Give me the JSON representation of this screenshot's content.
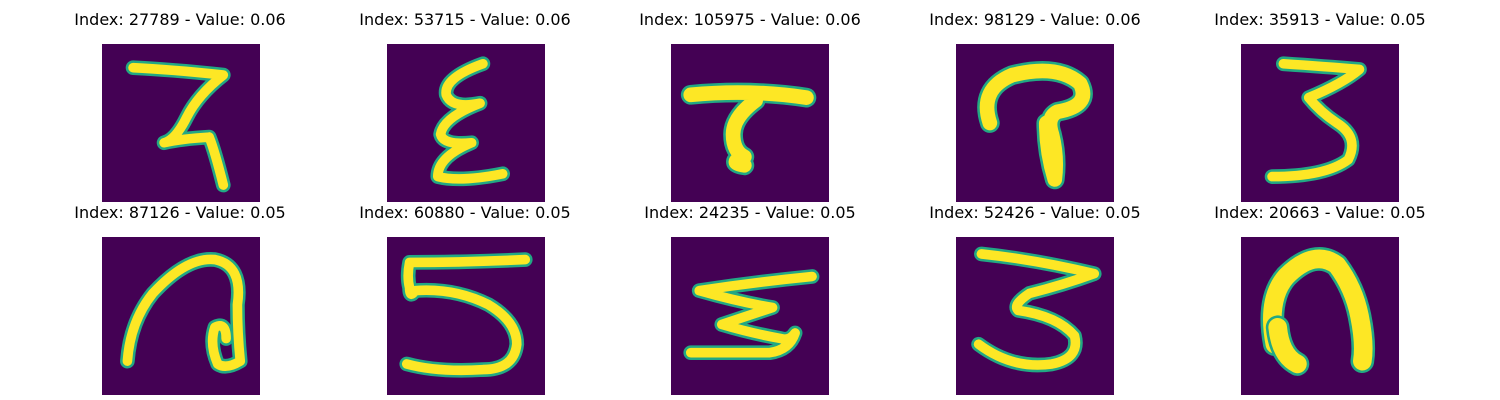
{
  "figure": {
    "colormap": "viridis",
    "background_color": "#440154",
    "stroke_color": "#fde725",
    "edge_color": "#22a884",
    "panels": [
      {
        "title": "Index: 27789 - Value: 0.06",
        "index": 27789,
        "value": 0.06,
        "icon": "handwritten-digit-7"
      },
      {
        "title": "Index: 53715 - Value: 0.06",
        "index": 53715,
        "value": 0.06,
        "icon": "handwritten-digit-3-squiggle"
      },
      {
        "title": "Index: 105975 - Value: 0.06",
        "index": 105975,
        "value": 0.06,
        "icon": "handwritten-digit-7-bar"
      },
      {
        "title": "Index: 98129 - Value: 0.06",
        "index": 98129,
        "value": 0.06,
        "icon": "handwritten-curl-shape"
      },
      {
        "title": "Index: 35913 - Value: 0.05",
        "index": 35913,
        "value": 0.05,
        "icon": "handwritten-digit-3"
      },
      {
        "title": "Index: 87126 - Value: 0.05",
        "index": 87126,
        "value": 0.05,
        "icon": "handwritten-digit-a"
      },
      {
        "title": "Index: 60880 - Value: 0.05",
        "index": 60880,
        "value": 0.05,
        "icon": "handwritten-digit-5"
      },
      {
        "title": "Index: 24235 - Value: 0.05",
        "index": 24235,
        "value": 0.05,
        "icon": "handwritten-digit-3-flat"
      },
      {
        "title": "Index: 52426 - Value: 0.05",
        "index": 52426,
        "value": 0.05,
        "icon": "handwritten-digit-3-wide"
      },
      {
        "title": "Index: 20663 - Value: 0.05",
        "index": 20663,
        "value": 0.05,
        "icon": "handwritten-arch-shape"
      }
    ]
  }
}
